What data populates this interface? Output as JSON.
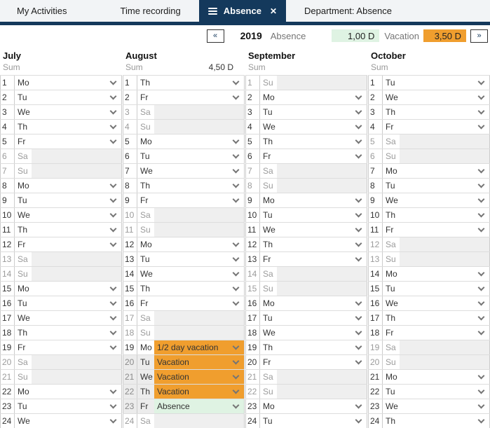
{
  "tabs": [
    {
      "label": "My Activities",
      "active": false
    },
    {
      "label": "Time recording",
      "active": false
    },
    {
      "label": "Absence",
      "active": true,
      "close_icon": "✕"
    },
    {
      "label": "Department: Absence",
      "active": false
    }
  ],
  "toolbar": {
    "prev_label": "«",
    "year": "2019",
    "absence_label": "Absence",
    "absence_value": "1,00 D",
    "vacation_label": "Vacation",
    "vacation_value": "3,50 D",
    "next_label": "»"
  },
  "colors": {
    "navy": "#14395C",
    "orange": "#F09E2E",
    "green_light": "#DFF3E3",
    "weekend_bg": "#EFEFEF",
    "shaded_bg": "#ECECEC"
  },
  "sum_label": "Sum",
  "months": [
    {
      "name": "July",
      "sum": "",
      "days": [
        [
          1,
          "Mo",
          "w"
        ],
        [
          2,
          "Tu",
          "w"
        ],
        [
          3,
          "We",
          "w"
        ],
        [
          4,
          "Th",
          "w"
        ],
        [
          5,
          "Fr",
          "w"
        ],
        [
          6,
          "Sa",
          "e"
        ],
        [
          7,
          "Su",
          "e"
        ],
        [
          8,
          "Mo",
          "w"
        ],
        [
          9,
          "Tu",
          "w"
        ],
        [
          10,
          "We",
          "w"
        ],
        [
          11,
          "Th",
          "w"
        ],
        [
          12,
          "Fr",
          "w"
        ],
        [
          13,
          "Sa",
          "e"
        ],
        [
          14,
          "Su",
          "e"
        ],
        [
          15,
          "Mo",
          "w"
        ],
        [
          16,
          "Tu",
          "w"
        ],
        [
          17,
          "We",
          "w"
        ],
        [
          18,
          "Th",
          "w"
        ],
        [
          19,
          "Fr",
          "w"
        ],
        [
          20,
          "Sa",
          "e"
        ],
        [
          21,
          "Su",
          "e"
        ],
        [
          22,
          "Mo",
          "w"
        ],
        [
          23,
          "Tu",
          "w"
        ],
        [
          24,
          "We",
          "w"
        ]
      ]
    },
    {
      "name": "August",
      "sum": "4,50 D",
      "days": [
        [
          1,
          "Th",
          "w"
        ],
        [
          2,
          "Fr",
          "w"
        ],
        [
          3,
          "Sa",
          "e"
        ],
        [
          4,
          "Su",
          "e"
        ],
        [
          5,
          "Mo",
          "w"
        ],
        [
          6,
          "Tu",
          "w"
        ],
        [
          7,
          "We",
          "w"
        ],
        [
          8,
          "Th",
          "w"
        ],
        [
          9,
          "Fr",
          "w"
        ],
        [
          10,
          "Sa",
          "e"
        ],
        [
          11,
          "Su",
          "e"
        ],
        [
          12,
          "Mo",
          "w"
        ],
        [
          13,
          "Tu",
          "w"
        ],
        [
          14,
          "We",
          "w"
        ],
        [
          15,
          "Th",
          "w"
        ],
        [
          16,
          "Fr",
          "w"
        ],
        [
          17,
          "Sa",
          "e"
        ],
        [
          18,
          "Su",
          "e"
        ],
        [
          19,
          "Mo",
          "w",
          {
            "text": "1/2 day vacation",
            "kind": "vacation",
            "shaded": false
          }
        ],
        [
          20,
          "Tu",
          "w",
          {
            "text": "Vacation",
            "kind": "vacation",
            "shaded": true
          }
        ],
        [
          21,
          "We",
          "w",
          {
            "text": "Vacation",
            "kind": "vacation",
            "shaded": true
          }
        ],
        [
          22,
          "Th",
          "w",
          {
            "text": "Vacation",
            "kind": "vacation",
            "shaded": true
          }
        ],
        [
          23,
          "Fr",
          "w",
          {
            "text": "Absence",
            "kind": "absence",
            "shaded": true
          }
        ],
        [
          24,
          "Sa",
          "e"
        ]
      ]
    },
    {
      "name": "September",
      "sum": "",
      "days": [
        [
          1,
          "Su",
          "e"
        ],
        [
          2,
          "Mo",
          "w"
        ],
        [
          3,
          "Tu",
          "w"
        ],
        [
          4,
          "We",
          "w"
        ],
        [
          5,
          "Th",
          "w"
        ],
        [
          6,
          "Fr",
          "w"
        ],
        [
          7,
          "Sa",
          "e"
        ],
        [
          8,
          "Su",
          "e"
        ],
        [
          9,
          "Mo",
          "w"
        ],
        [
          10,
          "Tu",
          "w"
        ],
        [
          11,
          "We",
          "w"
        ],
        [
          12,
          "Th",
          "w"
        ],
        [
          13,
          "Fr",
          "w"
        ],
        [
          14,
          "Sa",
          "e"
        ],
        [
          15,
          "Su",
          "e"
        ],
        [
          16,
          "Mo",
          "w"
        ],
        [
          17,
          "Tu",
          "w"
        ],
        [
          18,
          "We",
          "w"
        ],
        [
          19,
          "Th",
          "w"
        ],
        [
          20,
          "Fr",
          "w"
        ],
        [
          21,
          "Sa",
          "e"
        ],
        [
          22,
          "Su",
          "e"
        ],
        [
          23,
          "Mo",
          "w"
        ],
        [
          24,
          "Tu",
          "w"
        ]
      ]
    },
    {
      "name": "October",
      "sum": "",
      "days": [
        [
          1,
          "Tu",
          "w"
        ],
        [
          2,
          "We",
          "w"
        ],
        [
          3,
          "Th",
          "w"
        ],
        [
          4,
          "Fr",
          "w"
        ],
        [
          5,
          "Sa",
          "e"
        ],
        [
          6,
          "Su",
          "e"
        ],
        [
          7,
          "Mo",
          "w"
        ],
        [
          8,
          "Tu",
          "w"
        ],
        [
          9,
          "We",
          "w"
        ],
        [
          10,
          "Th",
          "w"
        ],
        [
          11,
          "Fr",
          "w"
        ],
        [
          12,
          "Sa",
          "e"
        ],
        [
          13,
          "Su",
          "e"
        ],
        [
          14,
          "Mo",
          "w"
        ],
        [
          15,
          "Tu",
          "w"
        ],
        [
          16,
          "We",
          "w"
        ],
        [
          17,
          "Th",
          "w"
        ],
        [
          18,
          "Fr",
          "w"
        ],
        [
          19,
          "Sa",
          "e"
        ],
        [
          20,
          "Su",
          "e"
        ],
        [
          21,
          "Mo",
          "w"
        ],
        [
          22,
          "Tu",
          "w"
        ],
        [
          23,
          "We",
          "w"
        ],
        [
          24,
          "Th",
          "w"
        ]
      ]
    }
  ]
}
